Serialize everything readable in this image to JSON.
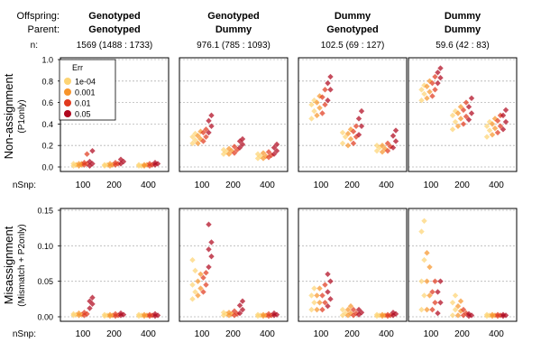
{
  "header": {
    "offspring_label": "Offspring:",
    "parent_label": "Parent:",
    "n_label": "n:",
    "nsnp_label": "nSnp:"
  },
  "legend": {
    "title": "Err",
    "items": [
      {
        "label": "1e-04",
        "color": "#FDD475"
      },
      {
        "label": "0.001",
        "color": "#F7952C"
      },
      {
        "label": "0.01",
        "color": "#E13A1E"
      },
      {
        "label": "0.05",
        "color": "#B0081E"
      }
    ]
  },
  "columns": [
    {
      "offspring": "Genotyped",
      "parent": "Genotyped",
      "n": "1569 (1488 : 1733)"
    },
    {
      "offspring": "Genotyped",
      "parent": "Dummy",
      "n": "976.1 (785 : 1093)"
    },
    {
      "offspring": "Dummy",
      "parent": "Genotyped",
      "n": "102.5 (69 : 127)"
    },
    {
      "offspring": "Dummy",
      "parent": "Dummy",
      "n": "59.6 (42 : 83)"
    }
  ],
  "rows": [
    {
      "ylabel_main": "Non-assignment",
      "ylabel_sub": "(P1only)"
    },
    {
      "ylabel_main": "Misassignment",
      "ylabel_sub": "(Mismatch + P2only)"
    }
  ],
  "chart_data": [
    {
      "type": "scatter",
      "x_axis_categories": [
        "100",
        "200",
        "400"
      ],
      "series_names": [
        "1e-04",
        "0.001",
        "0.01",
        "0.05"
      ],
      "y_ticks": [
        "0.0",
        "0.2",
        "0.4",
        "0.6",
        "0.8",
        "1.0"
      ],
      "ylim": [
        0,
        1.05
      ],
      "panels": [
        {
          "values": [
            [
              [
                0.01,
                0.02,
                0.03,
                0.02
              ],
              [
                0.01,
                0.02,
                0.03,
                0.03
              ],
              [
                0.02,
                0.03,
                0.04,
                0.12
              ],
              [
                0.01,
                0.03,
                0.05,
                0.15
              ]
            ],
            [
              [
                0.01,
                0.02,
                0.02
              ],
              [
                0.01,
                0.02,
                0.03
              ],
              [
                0.02,
                0.03,
                0.04
              ],
              [
                0.03,
                0.05,
                0.07
              ]
            ],
            [
              [
                0.01,
                0.01,
                0.02
              ],
              [
                0.01,
                0.02,
                0.02
              ],
              [
                0.01,
                0.02,
                0.03
              ],
              [
                0.02,
                0.03,
                0.04
              ]
            ]
          ]
        },
        {
          "values": [
            [
              [
                0.22,
                0.25,
                0.28,
                0.31
              ],
              [
                0.22,
                0.26,
                0.29,
                0.33
              ],
              [
                0.24,
                0.28,
                0.32,
                0.35
              ],
              [
                0.32,
                0.38,
                0.43,
                0.48
              ]
            ],
            [
              [
                0.12,
                0.14,
                0.16
              ],
              [
                0.12,
                0.15,
                0.17
              ],
              [
                0.13,
                0.16,
                0.19
              ],
              [
                0.18,
                0.21,
                0.24,
                0.26
              ]
            ],
            [
              [
                0.08,
                0.1,
                0.12
              ],
              [
                0.08,
                0.1,
                0.13
              ],
              [
                0.09,
                0.11,
                0.14
              ],
              [
                0.12,
                0.15,
                0.18,
                0.21
              ]
            ]
          ]
        },
        {
          "values": [
            [
              [
                0.45,
                0.52,
                0.58,
                0.62
              ],
              [
                0.48,
                0.55,
                0.6,
                0.66
              ],
              [
                0.5,
                0.58,
                0.65,
                0.72
              ],
              [
                0.62,
                0.72,
                0.78,
                0.84
              ]
            ],
            [
              [
                0.22,
                0.28,
                0.32
              ],
              [
                0.2,
                0.26,
                0.31,
                0.35
              ],
              [
                0.22,
                0.28,
                0.33,
                0.38
              ],
              [
                0.3,
                0.38,
                0.45,
                0.52
              ]
            ],
            [
              [
                0.15,
                0.18,
                0.2
              ],
              [
                0.14,
                0.17,
                0.2
              ],
              [
                0.15,
                0.19,
                0.22
              ],
              [
                0.18,
                0.24,
                0.29,
                0.34
              ]
            ]
          ]
        },
        {
          "values": [
            [
              [
                0.62,
                0.68,
                0.72,
                0.76
              ],
              [
                0.64,
                0.7,
                0.75,
                0.8
              ],
              [
                0.66,
                0.72,
                0.78,
                0.84
              ],
              [
                0.78,
                0.83,
                0.88,
                0.92
              ]
            ],
            [
              [
                0.35,
                0.42,
                0.48,
                0.52
              ],
              [
                0.38,
                0.45,
                0.5,
                0.56
              ],
              [
                0.4,
                0.47,
                0.53,
                0.6
              ],
              [
                0.44,
                0.5,
                0.56,
                0.64
              ]
            ],
            [
              [
                0.28,
                0.34,
                0.38,
                0.42
              ],
              [
                0.3,
                0.36,
                0.4,
                0.45
              ],
              [
                0.32,
                0.38,
                0.43,
                0.48
              ],
              [
                0.35,
                0.42,
                0.48,
                0.53
              ]
            ]
          ]
        }
      ]
    },
    {
      "type": "scatter",
      "x_axis_categories": [
        "100",
        "200",
        "400"
      ],
      "series_names": [
        "1e-04",
        "0.001",
        "0.01",
        "0.05"
      ],
      "y_ticks": [
        "0.00",
        "0.05",
        "0.10",
        "0.15"
      ],
      "ylim": [
        0,
        0.16
      ],
      "panels": [
        {
          "values": [
            [
              [
                0.002,
                0.003,
                0.004
              ],
              [
                0.002,
                0.003,
                0.005
              ],
              [
                0.002,
                0.004,
                0.006
              ],
              [
                0.012,
                0.018,
                0.022,
                0.027
              ]
            ],
            [
              [
                0.001,
                0.002,
                0.003
              ],
              [
                0.001,
                0.002,
                0.003
              ],
              [
                0.001,
                0.002,
                0.004
              ],
              [
                0.002,
                0.003,
                0.005
              ]
            ],
            [
              [
                0.001,
                0.002,
                0.003
              ],
              [
                0.001,
                0.002,
                0.003
              ],
              [
                0.001,
                0.002,
                0.003
              ],
              [
                0.001,
                0.002,
                0.004
              ]
            ]
          ]
        },
        {
          "values": [
            [
              [
                0.025,
                0.035,
                0.045,
                0.065,
                0.08
              ],
              [
                0.03,
                0.04,
                0.05,
                0.06
              ],
              [
                0.035,
                0.045,
                0.055,
                0.062
              ],
              [
                0.07,
                0.085,
                0.095,
                0.105,
                0.13
              ]
            ],
            [
              [
                0.002,
                0.004,
                0.006
              ],
              [
                0.002,
                0.004,
                0.006
              ],
              [
                0.002,
                0.004,
                0.008
              ],
              [
                0.005,
                0.01,
                0.016,
                0.022
              ]
            ],
            [
              [
                0.001,
                0.002,
                0.003
              ],
              [
                0.001,
                0.002,
                0.003
              ],
              [
                0.001,
                0.002,
                0.004
              ],
              [
                0.002,
                0.003,
                0.005
              ]
            ]
          ]
        },
        {
          "values": [
            [
              [
                0.01,
                0.02,
                0.03,
                0.04
              ],
              [
                0.01,
                0.02,
                0.03,
                0.04
              ],
              [
                0.01,
                0.02,
                0.03,
                0.045
              ],
              [
                0.015,
                0.025,
                0.035,
                0.05,
                0.06
              ]
            ],
            [
              [
                0.002,
                0.005,
                0.01
              ],
              [
                0.002,
                0.005,
                0.01,
                0.015
              ],
              [
                0.002,
                0.005,
                0.01
              ],
              [
                0.003,
                0.006,
                0.01
              ]
            ],
            [
              [
                0.001,
                0.002,
                0.003
              ],
              [
                0.001,
                0.002,
                0.003
              ],
              [
                0.001,
                0.002,
                0.003
              ],
              [
                0.002,
                0.004,
                0.006
              ]
            ]
          ]
        },
        {
          "values": [
            [
              [
                0.01,
                0.03,
                0.05,
                0.08,
                0.12,
                0.135
              ],
              [
                0.01,
                0.03,
                0.05,
                0.07,
                0.09
              ],
              [
                0.01,
                0.02,
                0.035,
                0.05
              ],
              [
                0.005,
                0.02,
                0.035,
                0.05
              ]
            ],
            [
              [
                0.002,
                0.01,
                0.02,
                0.03
              ],
              [
                0.002,
                0.008,
                0.015,
                0.022
              ],
              [
                0.002,
                0.005,
                0.01
              ],
              [
                0.001,
                0.002,
                0.004
              ]
            ],
            [
              [
                0.001,
                0.002,
                0.003
              ],
              [
                0.001,
                0.002,
                0.003
              ],
              [
                0.001,
                0.002,
                0.003
              ],
              [
                0.001,
                0.002,
                0.003
              ]
            ]
          ]
        }
      ]
    }
  ]
}
